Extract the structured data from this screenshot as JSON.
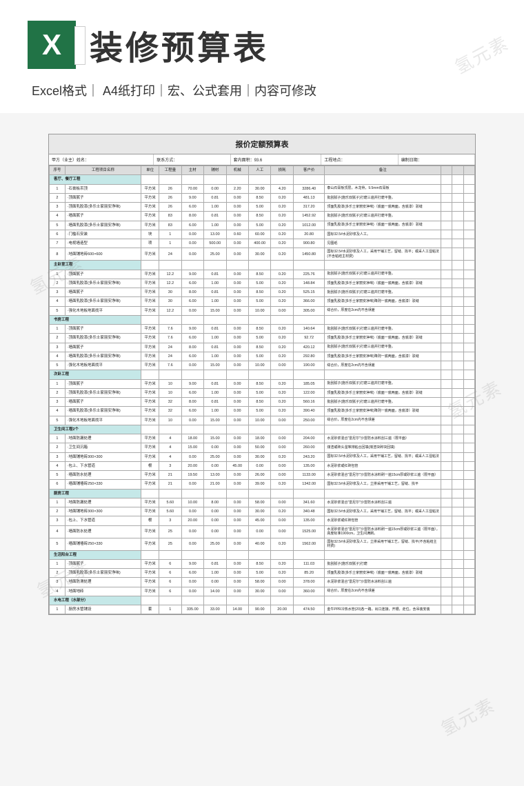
{
  "header": {
    "title": "装修预算表",
    "subtitle": "Excel格式｜ A4纸打印｜宏、公式套用｜内容可修改"
  },
  "sheet": {
    "title": "报价定额预算表",
    "meta": {
      "party_a_label": "甲方（业主）姓名：",
      "contact_label": "联系方式：",
      "area_label": "套内面积：",
      "area_value": "93.6",
      "addr_label": "工程地点：",
      "date_label": "编制日期："
    },
    "columns": [
      "序号",
      "工程项目名称",
      "单位",
      "工程量",
      "主材",
      "辅材",
      "机械",
      "人工",
      "损耗",
      "客户价",
      "备注",
      "",
      "",
      ""
    ],
    "sections": [
      {
        "name": "客厅、餐厅工程",
        "rows": [
          {
            "seq": "1",
            "name": "·石膏板吊顶",
            "unit": "平方米",
            "qty": "26",
            "c": [
              "70.00",
              "0.00",
              "2.20",
              "30.00",
              "4.20"
            ],
            "total": "3286.40",
            "remark": "泰山石膏板顶层，木龙骨，9.5mm石膏板"
          },
          {
            "seq": "2",
            "name": "·顶面腻子",
            "unit": "平方米",
            "qty": "26",
            "c": [
              "9.00",
              "0.81",
              "0.00",
              "8.50",
              "0.20"
            ],
            "total": "481.13",
            "remark": "批刮腻子(施乐双腻子)打磨三遍并打磨平整。"
          },
          {
            "seq": "3",
            "name": "·顶面乳胶漆(多乐士家丽安净味)",
            "unit": "平方米",
            "qty": "26",
            "c": [
              "6.00",
              "1.00",
              "0.00",
              "5.00",
              "0.20"
            ],
            "total": "317.20",
            "remark": "顶面乳胶漆(多乐士家丽安净味)（底面一底两面，含底漆）驳缝"
          },
          {
            "seq": "4",
            "name": "·墙面腻子",
            "unit": "平方米",
            "qty": "83",
            "c": [
              "8.00",
              "0.81",
              "0.00",
              "8.50",
              "0.20"
            ],
            "total": "1452.92",
            "remark": "批刮腻子(施乐双腻子)打磨三遍并打磨平整。"
          },
          {
            "seq": "5",
            "name": "·墙面乳胶漆(多乐士家丽安净味)",
            "unit": "平方米",
            "qty": "83",
            "c": [
              "6.00",
              "1.00",
              "0.00",
              "5.00",
              "0.20"
            ],
            "total": "1012.00",
            "remark": "顶面乳胶漆(多乐士家丽安净味)（底面一底两面，含底漆）驳缝"
          },
          {
            "seq": "6",
            "name": "·门槛石安装",
            "unit": "块",
            "qty": "1",
            "c": [
              "0.00",
              "13.00",
              "0.60",
              "60.00",
              "0.20"
            ],
            "total": "20.80",
            "remark": "国标32.5#水泥砂浆及人工。"
          },
          {
            "seq": "7",
            "name": "·电视墙造型",
            "unit": "项",
            "qty": "1",
            "c": [
              "0.00",
              "500.00",
              "0.00",
              "400.00",
              "0.20"
            ],
            "total": "900.80",
            "remark": "见图纸"
          },
          {
            "seq": "8",
            "name": "·地面铺地砖600×600",
            "unit": "平方米",
            "qty": "24",
            "c": [
              "0.00",
              "25.00",
              "0.00",
              "30.00",
              "0.20"
            ],
            "total": "1450.80",
            "remark": "国标32.5#水泥砂浆及人工，采用干铺工艺，留缝、找平；或采人工湿粘法(不含粘结主材费)"
          }
        ]
      },
      {
        "name": "主卧室工程",
        "rows": [
          {
            "seq": "1",
            "name": "·顶面腻子",
            "unit": "平方米",
            "qty": "12.2",
            "c": [
              "9.00",
              "0.81",
              "0.00",
              "8.50",
              "0.20"
            ],
            "total": "225.76",
            "remark": "批刮腻子(施乐双腻子)打磨三遍并打磨平整。"
          },
          {
            "seq": "2",
            "name": "·顶面乳胶漆(多乐士家丽安净味)",
            "unit": "平方米",
            "qty": "12.2",
            "c": [
              "6.00",
              "1.00",
              "0.00",
              "5.00",
              "0.20"
            ],
            "total": "148.84",
            "remark": "顶面乳胶漆(多乐士家丽安净味)（底面一底两面，含底漆）驳缝"
          },
          {
            "seq": "3",
            "name": "·墙面腻子",
            "unit": "平方米",
            "qty": "30",
            "c": [
              "8.00",
              "0.81",
              "0.00",
              "8.50",
              "0.20"
            ],
            "total": "525.15",
            "remark": "批刮腻子(施乐双腻子)打磨三遍并打磨平整。"
          },
          {
            "seq": "4",
            "name": "·墙面乳胶漆(多乐士家丽安净味)",
            "unit": "平方米",
            "qty": "30",
            "c": [
              "6.00",
              "1.00",
              "0.00",
              "5.00",
              "0.20"
            ],
            "total": "366.00",
            "remark": "顶面乳胶漆(多乐士家丽安净味)降则一底两面，含底漆）驳缝"
          },
          {
            "seq": "5",
            "name": "·强化木地板地面找平",
            "unit": "平方米",
            "qty": "12.2",
            "c": [
              "0.00",
              "15.00",
              "0.00",
              "10.00",
              "0.00"
            ],
            "total": "305.00",
            "remark": "综合价，厚度在2cm内不含误差"
          }
        ]
      },
      {
        "name": "书房工程",
        "rows": [
          {
            "seq": "1",
            "name": "·顶面腻子",
            "unit": "平方米",
            "qty": "7.6",
            "c": [
              "9.00",
              "0.81",
              "0.00",
              "8.50",
              "0.20"
            ],
            "total": "140.64",
            "remark": "批刮腻子(施乐双腻子)打磨三遍并打磨平整。"
          },
          {
            "seq": "2",
            "name": "·顶面乳胶漆(多乐士家丽安净味)",
            "unit": "平方米",
            "qty": "7.6",
            "c": [
              "6.00",
              "1.00",
              "0.00",
              "5.00",
              "0.20"
            ],
            "total": "92.72",
            "remark": "顶面乳胶漆(多乐士家丽安净味)（底面一底两面，含底漆）驳缝"
          },
          {
            "seq": "3",
            "name": "·墙面腻子",
            "unit": "平方米",
            "qty": "24",
            "c": [
              "8.00",
              "0.81",
              "0.00",
              "8.50",
              "0.20"
            ],
            "total": "420.12",
            "remark": "批刮腻子(施乐双腻子)打磨三遍并打磨平整。"
          },
          {
            "seq": "4",
            "name": "·墙面乳胶漆(多乐士家丽安净味)",
            "unit": "平方米",
            "qty": "24",
            "c": [
              "6.00",
              "1.00",
              "0.00",
              "5.00",
              "0.20"
            ],
            "total": "292.80",
            "remark": "顶面乳胶漆(多乐士家丽安净味)降则一底两面，含底漆）驳缝"
          },
          {
            "seq": "5",
            "name": "·强化木地板地面找平",
            "unit": "平方米",
            "qty": "7.6",
            "c": [
              "0.00",
              "15.00",
              "0.00",
              "10.00",
              "0.00"
            ],
            "total": "190.00",
            "remark": "综合价，厚度在2cm内不含误差"
          }
        ]
      },
      {
        "name": "次卧工程",
        "rows": [
          {
            "seq": "1",
            "name": "·顶面腻子",
            "unit": "平方米",
            "qty": "10",
            "c": [
              "9.00",
              "0.81",
              "0.00",
              "8.50",
              "0.20"
            ],
            "total": "185.05",
            "remark": "批刮腻子(施乐双腻子)打磨三遍并打磨平整。"
          },
          {
            "seq": "2",
            "name": "·顶面乳胶漆(多乐士家丽安净味)",
            "unit": "平方米",
            "qty": "10",
            "c": [
              "6.00",
              "1.00",
              "0.00",
              "5.00",
              "0.20"
            ],
            "total": "122.00",
            "remark": "顶面乳胶漆(多乐士家丽安净味)（底面一底两面，含底漆）驳缝"
          },
          {
            "seq": "3",
            "name": "·墙面腻子",
            "unit": "平方米",
            "qty": "32",
            "c": [
              "8.00",
              "0.81",
              "0.00",
              "8.50",
              "0.20"
            ],
            "total": "560.16",
            "remark": "批刮腻子(施乐双腻子)打磨三遍并打磨平整。"
          },
          {
            "seq": "4",
            "name": "·墙面乳胶漆(多乐士家丽安净味)",
            "unit": "平方米",
            "qty": "32",
            "c": [
              "6.00",
              "1.00",
              "0.00",
              "5.00",
              "0.20"
            ],
            "total": "390.40",
            "remark": "顶面乳胶漆(多乐士家丽安净味)降则一底两面，含底漆）驳缝"
          },
          {
            "seq": "5",
            "name": "·强化木地板地面找平",
            "unit": "平方米",
            "qty": "10",
            "c": [
              "0.00",
              "15.00",
              "0.00",
              "10.00",
              "0.00"
            ],
            "total": "250.00",
            "remark": "综合价，厚度在2cm内不含误差"
          }
        ]
      },
      {
        "name": "卫生间工程2个",
        "rows": [
          {
            "seq": "1",
            "name": "·地面防漏处理",
            "unit": "平方米",
            "qty": "4",
            "c": [
              "18.00",
              "15.00",
              "0.00",
              "18.00",
              "0.00"
            ],
            "total": "204.00",
            "remark": "水泥砂浆混合\"雷尼尔\"沙雷防水涂料刮三遍（限平面）"
          },
          {
            "seq": "2",
            "name": "·卫生间沉箱",
            "unit": "平方米",
            "qty": "4",
            "c": [
              "15.00",
              "0.00",
              "0.00",
              "50.00",
              "0.00"
            ],
            "total": "260.00",
            "remark": "煤渣或砖头湿堆排粘合回填(煤渣块砖块回填)"
          },
          {
            "seq": "3",
            "name": "·地面铺地砖300×300",
            "unit": "平方米",
            "qty": "4",
            "c": [
              "0.00",
              "25.00",
              "0.00",
              "30.00",
              "0.20"
            ],
            "total": "243.20",
            "remark": "国标32.5#水泥砂浆及人工，采用干铺工艺，留缝、找平；或采人工湿粘法"
          },
          {
            "seq": "4",
            "name": "·包上、下水管道",
            "unit": "根",
            "qty": "3",
            "c": [
              "20.00",
              "0.00",
              "45.00",
              "0.00",
              "0.00"
            ],
            "total": "135.00",
            "remark": "水泥砂浆或红砖包管"
          },
          {
            "seq": "5",
            "name": "·墙面防水处理",
            "unit": "平方米",
            "qty": "21",
            "c": [
              "19.50",
              "13.00",
              "0.00",
              "26.00",
              "0.00"
            ],
            "total": "1133.00",
            "remark": "水泥砂浆混合\"雷尼尔\"沙雷防水涂料刷一遍15cm厚或砂浆三遍（限平面）"
          },
          {
            "seq": "6",
            "name": "·墙面铺墙砖250×330",
            "unit": "平方米",
            "qty": "21",
            "c": [
              "0.00",
              "21.00",
              "0.00",
              "39.00",
              "0.20"
            ],
            "total": "1342.00",
            "remark": "国标32.5#水泥砂浆及人工，立排采用干铺工艺，留缝、找平"
          }
        ]
      },
      {
        "name": "厨房工程",
        "rows": [
          {
            "seq": "1",
            "name": "·地面防漏处理",
            "unit": "平方米",
            "qty": "5.60",
            "c": [
              "10.00",
              "8.00",
              "0.00",
              "58.00",
              "0.00"
            ],
            "total": "341.60",
            "remark": "水泥砂浆混合\"雷尼尔\"沙雷防水涂料刮三遍"
          },
          {
            "seq": "2",
            "name": "·地面铺地砖300×300",
            "unit": "平方米",
            "qty": "5.60",
            "c": [
              "0.00",
              "0.00",
              "0.00",
              "30.00",
              "0.20"
            ],
            "total": "340.48",
            "remark": "国标32.5#水泥砂浆及人工，采用干铺工艺，留缝、找平；或采人工湿粘法"
          },
          {
            "seq": "3",
            "name": "·包上、下水管道",
            "unit": "根",
            "qty": "3",
            "c": [
              "20.00",
              "0.00",
              "0.00",
              "45.00",
              "0.00"
            ],
            "total": "135.00",
            "remark": "水泥砂浆或红砖包管"
          },
          {
            "seq": "4",
            "name": "·墙面防水处理",
            "unit": "平方米",
            "qty": "25",
            "c": [
              "0.00",
              "0.00",
              "0.00",
              "0.00",
              "0.00"
            ],
            "total": "1525.00",
            "remark": "水泥砂浆混合\"雷尼尔\"沙雷防水涂料刷一遍15cm厚或砂浆三遍（限平面），高度标准1900cm，卫生间满刷。"
          },
          {
            "seq": "5",
            "name": "·墙面铺墙砖250×330",
            "unit": "平方米",
            "qty": "25",
            "c": [
              "0.00",
              "25.00",
              "0.00",
              "40.00",
              "0.20"
            ],
            "total": "1562.00",
            "remark": "国标32.5#水泥砂浆及人工，立排采用干铺工艺，留缝、找平(不含粘结主材费)"
          }
        ]
      },
      {
        "name": "生活阳台工程",
        "rows": [
          {
            "seq": "1",
            "name": "·顶面腻子",
            "unit": "平方米",
            "qty": "6",
            "c": [
              "9.00",
              "0.81",
              "0.00",
              "8.50",
              "0.20"
            ],
            "total": "111.03",
            "remark": "批刮腻子(施乐双腻子)打磨"
          },
          {
            "seq": "2",
            "name": "·顶面乳胶漆(多乐士家丽安净味)",
            "unit": "平方米",
            "qty": "6",
            "c": [
              "6.00",
              "1.00",
              "0.00",
              "5.00",
              "0.20"
            ],
            "total": "85.20",
            "remark": "顶面乳胶漆(多乐士家丽安净味)（底面一底两面，含底漆）驳缝"
          },
          {
            "seq": "3",
            "name": "·地面防滑处理",
            "unit": "平方米",
            "qty": "6",
            "c": [
              "0.00",
              "0.00",
              "0.00",
              "58.00",
              "0.00"
            ],
            "total": "378.00",
            "remark": "水泥砂浆混合\"雷尼尔\"沙雷防水涂料刮三遍"
          },
          {
            "seq": "4",
            "name": "·地面地砖",
            "unit": "平方米",
            "qty": "6",
            "c": [
              "0.00",
              "14.00",
              "0.00",
              "30.00",
              "0.00"
            ],
            "total": "360.00",
            "remark": "综合价，厚度在2cm内不含误差"
          }
        ]
      },
      {
        "name": "水电工程（水部分）",
        "rows": [
          {
            "seq": "1",
            "name": "·厨房水管铺设",
            "unit": "套",
            "qty": "1",
            "c": [
              "335.00",
              "33.00",
              "14.00",
              "90.00",
              "20.00"
            ],
            "total": "474.50",
            "remark": "金牛PPR冷热水管(20)各一路，出口连接，开槽，走位，含吊装安装"
          }
        ]
      }
    ]
  },
  "watermark": "氢元素"
}
